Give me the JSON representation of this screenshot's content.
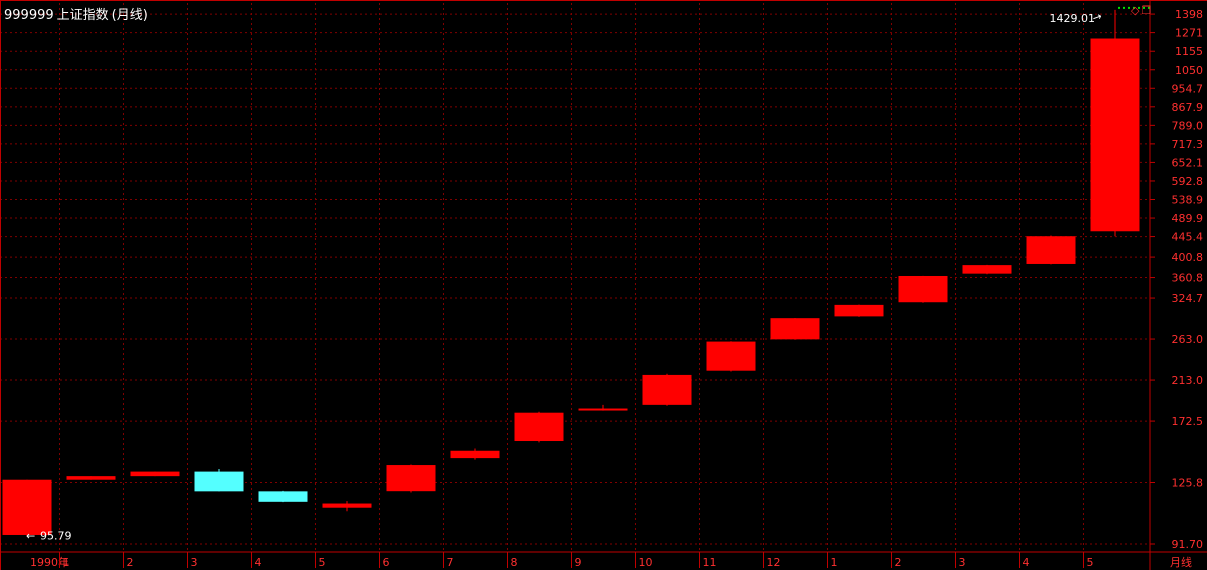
{
  "header": {
    "code": "999999",
    "name": "上证指数",
    "period_label": "(月线)"
  },
  "footer": {
    "period_tag": "月线"
  },
  "icons": {
    "diamond": "diamond-outline-icon",
    "window": "restore-window-icon"
  },
  "colors": {
    "background": "#000000",
    "grid": "#800000",
    "axis": "#c00000",
    "up": "#ff0000",
    "down": "#54ffff",
    "text_axis": "#ff3030",
    "text_label": "#ffffff",
    "ma_dotted": "#00e000"
  },
  "chart_data": {
    "type": "candlestick",
    "title": "999999 上证指数(月线)",
    "y_scale": "log",
    "ylim": [
      88,
      1480
    ],
    "grid": true,
    "y_ticks": [
      "1398",
      "1271",
      "1155",
      "1050",
      "954.7",
      "867.9",
      "789.0",
      "717.3",
      "652.1",
      "592.8",
      "538.9",
      "489.9",
      "445.4",
      "400.8",
      "360.8",
      "324.7",
      "263.0",
      "213.0",
      "172.5",
      "125.8",
      "91.70"
    ],
    "x_labels": [
      "1990年",
      "1",
      "2",
      "3",
      "4",
      "5",
      "6",
      "7",
      "8",
      "9",
      "10",
      "11",
      "12",
      "1",
      "2",
      "3",
      "4",
      "5"
    ],
    "candles": [
      {
        "open": 96.05,
        "high": 127.61,
        "low": 95.79,
        "close": 127.61,
        "direction": "up"
      },
      {
        "open": 127.61,
        "high": 129.97,
        "low": 127.61,
        "close": 129.97,
        "direction": "up"
      },
      {
        "open": 129.97,
        "high": 133.05,
        "low": 129.97,
        "close": 133.05,
        "direction": "up"
      },
      {
        "open": 133.05,
        "high": 134.87,
        "low": 120.2,
        "close": 120.2,
        "direction": "down"
      },
      {
        "open": 120.2,
        "high": 120.5,
        "low": 113.7,
        "close": 113.9,
        "direction": "down"
      },
      {
        "open": 110.5,
        "high": 114.3,
        "low": 108.5,
        "close": 112.9,
        "direction": "up"
      },
      {
        "open": 120.3,
        "high": 138.0,
        "low": 119.5,
        "close": 137.6,
        "direction": "up"
      },
      {
        "open": 142.6,
        "high": 149.8,
        "low": 141.5,
        "close": 148.1,
        "direction": "up"
      },
      {
        "open": 155.7,
        "high": 181.0,
        "low": 154.6,
        "close": 180.1,
        "direction": "up"
      },
      {
        "open": 182.5,
        "high": 187.5,
        "low": 182.0,
        "close": 184.0,
        "direction": "up"
      },
      {
        "open": 187.5,
        "high": 220.0,
        "low": 186.7,
        "close": 218.7,
        "direction": "up"
      },
      {
        "open": 223.5,
        "high": 260.0,
        "low": 222.6,
        "close": 259.6,
        "direction": "up"
      },
      {
        "open": 262.6,
        "high": 293.0,
        "low": 262.0,
        "close": 292.8,
        "direction": "up"
      },
      {
        "open": 295.5,
        "high": 314.0,
        "low": 294.8,
        "close": 313.5,
        "direction": "up"
      },
      {
        "open": 317.8,
        "high": 364.0,
        "low": 317.0,
        "close": 363.7,
        "direction": "up"
      },
      {
        "open": 368.1,
        "high": 385.0,
        "low": 367.0,
        "close": 384.6,
        "direction": "up"
      },
      {
        "open": 386.9,
        "high": 448.0,
        "low": 386.0,
        "close": 446.2,
        "direction": "up"
      },
      {
        "open": 457.7,
        "high": 1429.01,
        "low": 446.0,
        "close": 1233.0,
        "direction": "up"
      }
    ],
    "annotations": [
      {
        "label": "1429.01",
        "value": 1429.01,
        "arrow": "→",
        "marks": "high"
      },
      {
        "label": "95.79",
        "value": 95.79,
        "arrow": "←",
        "marks": "low"
      }
    ]
  }
}
